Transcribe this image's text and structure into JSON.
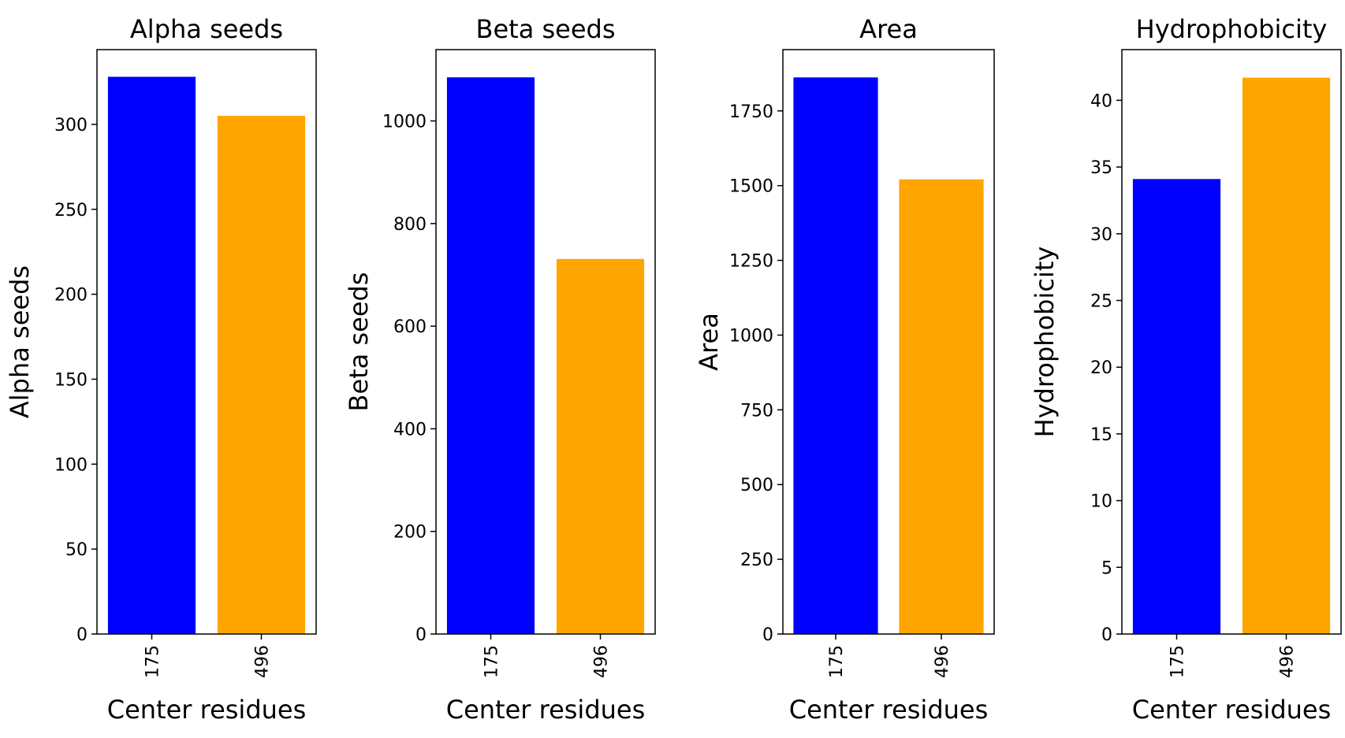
{
  "chart_data": [
    {
      "type": "bar",
      "title": "Alpha seeds",
      "xlabel": "Center residues",
      "ylabel": "Alpha seeds",
      "categories": [
        "175",
        "496"
      ],
      "values": [
        328,
        305
      ],
      "colors": [
        "#0000ff",
        "#ffa500"
      ],
      "ylim": [
        0,
        344
      ],
      "yticks": [
        0,
        50,
        100,
        150,
        200,
        250,
        300
      ],
      "grid": false,
      "legend": "none"
    },
    {
      "type": "bar",
      "title": "Beta seeds",
      "xlabel": "Center residues",
      "ylabel": "Beta seeds",
      "categories": [
        "175",
        "496"
      ],
      "values": [
        1085,
        731
      ],
      "colors": [
        "#0000ff",
        "#ffa500"
      ],
      "ylim": [
        0,
        1139
      ],
      "yticks": [
        0,
        200,
        400,
        600,
        800,
        1000
      ],
      "grid": false,
      "legend": "none"
    },
    {
      "type": "bar",
      "title": "Area",
      "xlabel": "Center residues",
      "ylabel": "Area",
      "categories": [
        "175",
        "496"
      ],
      "values": [
        1862,
        1521
      ],
      "colors": [
        "#0000ff",
        "#ffa500"
      ],
      "ylim": [
        0,
        1955
      ],
      "yticks": [
        0,
        250,
        500,
        750,
        1000,
        1250,
        1500,
        1750
      ],
      "grid": false,
      "legend": "none"
    },
    {
      "type": "bar",
      "title": "Hydrophobicity",
      "xlabel": "Center residues",
      "ylabel": "Hydrophobicity",
      "categories": [
        "175",
        "496"
      ],
      "values": [
        34.1,
        41.7
      ],
      "colors": [
        "#0000ff",
        "#ffa500"
      ],
      "ylim": [
        0,
        43.8
      ],
      "yticks": [
        0,
        5,
        10,
        15,
        20,
        25,
        30,
        35,
        40
      ],
      "grid": false,
      "legend": "none"
    }
  ]
}
